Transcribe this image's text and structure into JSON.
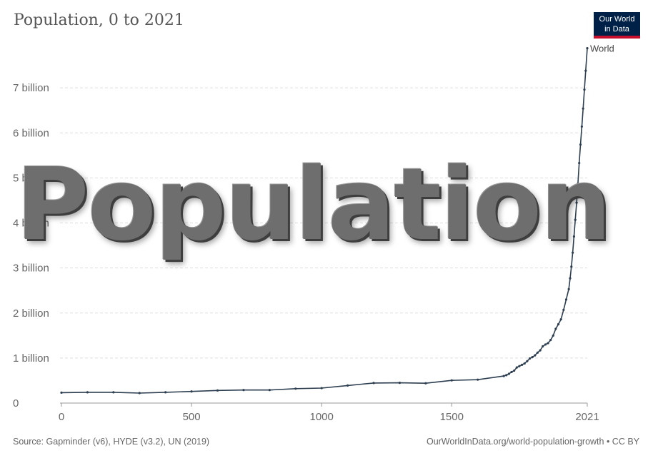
{
  "header": {
    "title": "Population, 0 to 2021",
    "logo_line1": "Our World",
    "logo_line2": "in Data"
  },
  "footer": {
    "source": "Source: Gapminder (v6), HYDE (v3.2), UN (2019)",
    "credit": "OurWorldInData.org/world-population-growth • CC BY"
  },
  "watermark": {
    "text": "Population"
  },
  "colors": {
    "line": "#2d3e50",
    "grid": "#dddddd",
    "axis": "#999999",
    "logo_bg": "#002147",
    "logo_accent": "#c8102e"
  },
  "chart_data": {
    "type": "line",
    "title": "Population, 0 to 2021",
    "xlim": [
      0,
      2021
    ],
    "ylim": [
      0,
      8000000000
    ],
    "x_ticks": [
      0,
      500,
      1000,
      1500,
      2021
    ],
    "x_tick_labels": [
      "0",
      "500",
      "1000",
      "1500",
      "2021"
    ],
    "y_ticks": [
      0,
      1000000000,
      2000000000,
      3000000000,
      4000000000,
      5000000000,
      6000000000,
      7000000000
    ],
    "y_tick_labels": [
      "0",
      "1 billion",
      "2 billion",
      "3 billion",
      "4 billion",
      "5 billion",
      "6 billion",
      "7 billion"
    ],
    "grid": true,
    "series": [
      {
        "name": "World",
        "x": [
          0,
          100,
          200,
          300,
          400,
          500,
          600,
          700,
          800,
          900,
          1000,
          1100,
          1200,
          1300,
          1400,
          1500,
          1600,
          1700,
          1710,
          1720,
          1730,
          1740,
          1750,
          1760,
          1770,
          1780,
          1790,
          1800,
          1810,
          1820,
          1830,
          1840,
          1850,
          1860,
          1870,
          1880,
          1890,
          1900,
          1910,
          1920,
          1930,
          1940,
          1950,
          1955,
          1960,
          1965,
          1970,
          1975,
          1980,
          1985,
          1990,
          1995,
          2000,
          2005,
          2010,
          2015,
          2021
        ],
        "y": [
          232000000,
          240000000,
          240000000,
          222000000,
          240000000,
          258000000,
          280000000,
          290000000,
          290000000,
          320000000,
          332000000,
          390000000,
          445000000,
          450000000,
          440000000,
          504000000,
          520000000,
          600000000,
          620000000,
          650000000,
          690000000,
          720000000,
          790000000,
          820000000,
          850000000,
          880000000,
          930000000,
          990000000,
          1020000000,
          1060000000,
          1120000000,
          1170000000,
          1260000000,
          1300000000,
          1330000000,
          1400000000,
          1500000000,
          1650000000,
          1750000000,
          1860000000,
          2070000000,
          2300000000,
          2530000000,
          2770000000,
          3030000000,
          3340000000,
          3700000000,
          4070000000,
          4450000000,
          4870000000,
          5330000000,
          5740000000,
          6140000000,
          6540000000,
          6960000000,
          7380000000,
          7880000000
        ]
      }
    ]
  }
}
